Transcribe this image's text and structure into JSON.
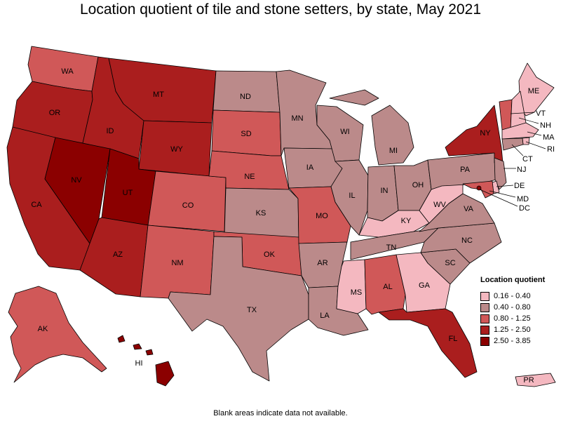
{
  "title": "Location quotient of tile and stone setters, by state, May 2021",
  "footnote": "Blank areas indicate data not available.",
  "legend": {
    "title": "Location quotient",
    "items": [
      {
        "label": "0.16 - 0.40",
        "color": "#f4b8c0"
      },
      {
        "label": "0.40 - 0.80",
        "color": "#bb8a8a"
      },
      {
        "label": "0.80 - 1.25",
        "color": "#d05858"
      },
      {
        "label": "1.25 - 2.50",
        "color": "#aa1e1e"
      },
      {
        "label": "2.50 - 3.85",
        "color": "#8b0000"
      }
    ]
  },
  "states": {
    "WA": {
      "label": "WA",
      "class": 2
    },
    "OR": {
      "label": "OR",
      "class": 3
    },
    "CA": {
      "label": "CA",
      "class": 3
    },
    "NV": {
      "label": "NV",
      "class": 4
    },
    "ID": {
      "label": "ID",
      "class": 3
    },
    "MT": {
      "label": "MT",
      "class": 3
    },
    "WY": {
      "label": "WY",
      "class": 3
    },
    "UT": {
      "label": "UT",
      "class": 4
    },
    "AZ": {
      "label": "AZ",
      "class": 3
    },
    "CO": {
      "label": "CO",
      "class": 2
    },
    "NM": {
      "label": "NM",
      "class": 2
    },
    "ND": {
      "label": "ND",
      "class": 1
    },
    "SD": {
      "label": "SD",
      "class": 2
    },
    "NE": {
      "label": "NE",
      "class": 2
    },
    "KS": {
      "label": "KS",
      "class": 1
    },
    "OK": {
      "label": "OK",
      "class": 2
    },
    "TX": {
      "label": "TX",
      "class": 1
    },
    "MN": {
      "label": "MN",
      "class": 1
    },
    "IA": {
      "label": "IA",
      "class": 1
    },
    "MO": {
      "label": "MO",
      "class": 2
    },
    "AR": {
      "label": "AR",
      "class": 1
    },
    "LA": {
      "label": "LA",
      "class": 1
    },
    "WI": {
      "label": "WI",
      "class": 1
    },
    "IL": {
      "label": "IL",
      "class": 1
    },
    "MI": {
      "label": "MI",
      "class": 1
    },
    "IN": {
      "label": "IN",
      "class": 1
    },
    "OH": {
      "label": "OH",
      "class": 1
    },
    "KY": {
      "label": "KY",
      "class": 0
    },
    "TN": {
      "label": "TN",
      "class": 1
    },
    "MS": {
      "label": "MS",
      "class": 0
    },
    "AL": {
      "label": "AL",
      "class": 2
    },
    "GA": {
      "label": "GA",
      "class": 0
    },
    "FL": {
      "label": "FL",
      "class": 3
    },
    "SC": {
      "label": "SC",
      "class": 1
    },
    "NC": {
      "label": "NC",
      "class": 1
    },
    "VA": {
      "label": "VA",
      "class": 1
    },
    "WV": {
      "label": "WV",
      "class": 0
    },
    "PA": {
      "label": "PA",
      "class": 1
    },
    "NY": {
      "label": "NY",
      "class": 3
    },
    "ME": {
      "label": "ME",
      "class": 0
    },
    "VT": {
      "label": "VT",
      "class": 2
    },
    "NH": {
      "label": "NH",
      "class": 0
    },
    "MA": {
      "label": "MA",
      "class": 0
    },
    "RI": {
      "label": "RI",
      "class": 0
    },
    "CT": {
      "label": "CT",
      "class": 1
    },
    "NJ": {
      "label": "NJ",
      "class": 1
    },
    "DE": {
      "label": "DE",
      "class": 0
    },
    "MD": {
      "label": "MD",
      "class": 2
    },
    "DC": {
      "label": "DC",
      "class": 4
    },
    "AK": {
      "label": "AK",
      "class": 2
    },
    "HI": {
      "label": "HI",
      "class": 4
    },
    "PR": {
      "label": "PR",
      "class": 0
    }
  }
}
